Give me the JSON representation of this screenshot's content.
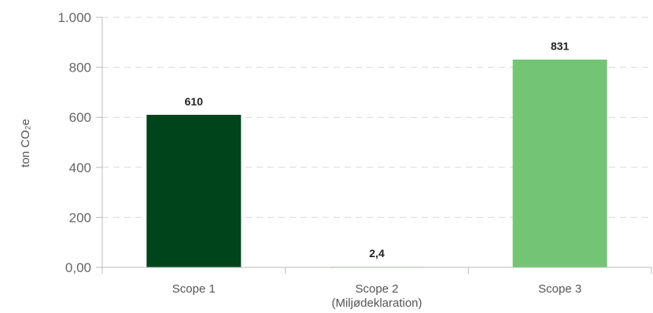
{
  "chart_data": {
    "type": "bar",
    "categories": [
      [
        "Scope 1"
      ],
      [
        "Scope 2",
        "(Miljødeklaration)"
      ],
      [
        "Scope 3"
      ]
    ],
    "values": [
      610,
      2.4,
      831
    ],
    "data_labels": [
      "610",
      "2,4",
      "831"
    ],
    "bar_colors": [
      "#00441b",
      "#c7e9c0",
      "#74c476"
    ],
    "ylabel": "ton CO₂e",
    "ylim": [
      0,
      1000
    ],
    "yticks": [
      0,
      200,
      400,
      600,
      800,
      1000
    ],
    "ytick_labels": [
      "0,00",
      "200",
      "400",
      "600",
      "800",
      "1.000"
    ],
    "grid": true,
    "legend": "none"
  }
}
